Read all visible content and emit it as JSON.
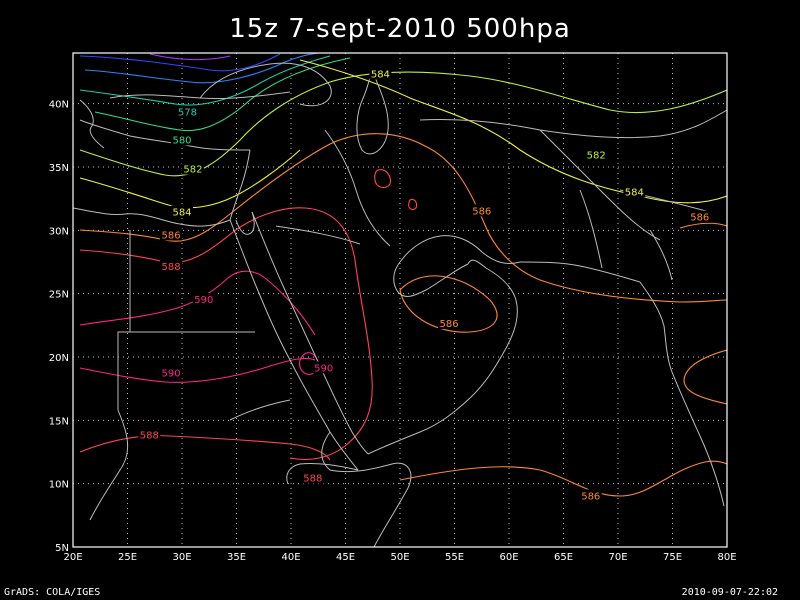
{
  "title": "15z 7-sept-2010 500hpa",
  "footer": {
    "credit": "GrADS: COLA/IGES",
    "timestamp": "2010-09-07-22:02"
  },
  "map": {
    "lon_range": [
      20,
      80
    ],
    "lat_range": [
      5,
      44
    ],
    "x_ticks": [
      "20E",
      "25E",
      "30E",
      "35E",
      "40E",
      "45E",
      "50E",
      "55E",
      "60E",
      "65E",
      "70E",
      "75E",
      "80E"
    ],
    "y_ticks": [
      "5N",
      "10N",
      "15N",
      "20N",
      "25N",
      "30N",
      "35N",
      "40N"
    ],
    "grid": "dotted",
    "colors": {
      "c578": "#22ccaa",
      "c580": "#33dd88",
      "c582": "#bbee44",
      "c584": "#eeee44",
      "c586": "#ff8833",
      "c588": "#ff4455",
      "c590": "#ff2288",
      "coast": "#bbbbbb"
    }
  },
  "contour_labels": [
    {
      "text": "584",
      "lon": 48.2,
      "lat": 42.3,
      "color_key": "c584"
    },
    {
      "text": "578",
      "lon": 30.5,
      "lat": 39.3,
      "color_key": "c578"
    },
    {
      "text": "580",
      "lon": 30.0,
      "lat": 37.1,
      "color_key": "c580"
    },
    {
      "text": "582",
      "lon": 31.0,
      "lat": 34.8,
      "color_key": "c582"
    },
    {
      "text": "584",
      "lon": 30.0,
      "lat": 31.4,
      "color_key": "c584"
    },
    {
      "text": "586",
      "lon": 29.0,
      "lat": 29.6,
      "color_key": "c586"
    },
    {
      "text": "588",
      "lon": 29.0,
      "lat": 27.1,
      "color_key": "c588"
    },
    {
      "text": "590",
      "lon": 32.0,
      "lat": 24.5,
      "color_key": "c590"
    },
    {
      "text": "590",
      "lon": 29.0,
      "lat": 18.7,
      "color_key": "c590"
    },
    {
      "text": "590",
      "lon": 43.0,
      "lat": 19.1,
      "color_key": "c590"
    },
    {
      "text": "588",
      "lon": 27.0,
      "lat": 13.8,
      "color_key": "c588"
    },
    {
      "text": "588",
      "lon": 42.0,
      "lat": 10.4,
      "color_key": "c588"
    },
    {
      "text": "586",
      "lon": 54.5,
      "lat": 22.6,
      "color_key": "c586"
    },
    {
      "text": "586",
      "lon": 57.5,
      "lat": 31.5,
      "color_key": "c586"
    },
    {
      "text": "582",
      "lon": 68.0,
      "lat": 35.9,
      "color_key": "c582"
    },
    {
      "text": "584",
      "lon": 71.5,
      "lat": 33.0,
      "color_key": "c584"
    },
    {
      "text": "586",
      "lon": 77.5,
      "lat": 31.0,
      "color_key": "c586"
    },
    {
      "text": "586",
      "lon": 67.5,
      "lat": 9.0,
      "color_key": "c586"
    }
  ]
}
